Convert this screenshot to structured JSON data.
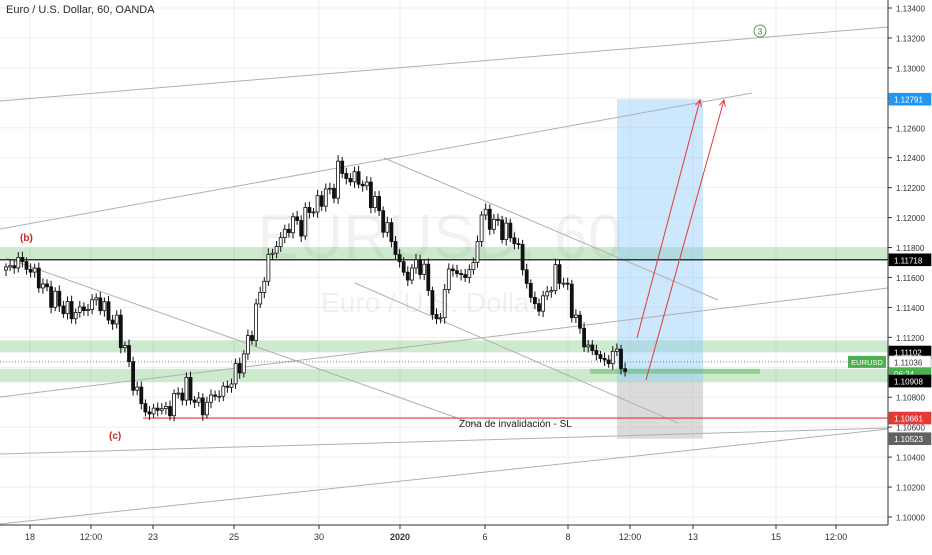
{
  "header": {
    "title": "Euro / U.S. Dollar, 60, OANDA"
  },
  "watermark": {
    "symbol": "EURUSD, 60",
    "description": "Euro / U.S. Dollar"
  },
  "chart_data": {
    "type": "candlestick",
    "title": "Euro / U.S. Dollar, 60, OANDA",
    "ylim": [
      1.099,
      1.1345
    ],
    "y_ticks": [
      1.1,
      1.102,
      1.104,
      1.106,
      1.108,
      1.11,
      1.112,
      1.114,
      1.116,
      1.118,
      1.12,
      1.122,
      1.124,
      1.126,
      1.128,
      1.13,
      1.132,
      1.134
    ],
    "y_tick_labels": [
      "1.10000",
      "1.10200",
      "1.10400",
      "1.10600",
      "1.10800",
      "1.11000",
      "1.11200",
      "1.11400",
      "1.11600",
      "1.11800",
      "1.12000",
      "1.12200",
      "1.12400",
      "1.12600",
      "1.12800",
      "1.13000",
      "1.13200",
      "1.13400"
    ],
    "x_tick_labels": [
      "18",
      "12:00",
      "23",
      "25",
      "30",
      "2020",
      "6",
      "8",
      "12:00",
      "13",
      "15",
      "12:00"
    ],
    "price_path": [
      [
        0,
        1.1164
      ],
      [
        3,
        1.1172
      ],
      [
        7,
        1.1162
      ],
      [
        10,
        1.115
      ],
      [
        13,
        1.1142
      ],
      [
        16,
        1.1136
      ],
      [
        20,
        1.114
      ],
      [
        22,
        1.1146
      ],
      [
        24,
        1.1138
      ],
      [
        27,
        1.1128
      ],
      [
        29,
        1.1112
      ],
      [
        31,
        1.109
      ],
      [
        33,
        1.1076
      ],
      [
        35,
        1.1068
      ],
      [
        37,
        1.1074
      ],
      [
        39,
        1.107
      ],
      [
        42,
        1.1082
      ],
      [
        44,
        1.1086
      ],
      [
        46,
        1.1078
      ],
      [
        48,
        1.1072
      ],
      [
        50,
        1.108
      ],
      [
        53,
        1.1084
      ],
      [
        56,
        1.1096
      ],
      [
        58,
        1.1108
      ],
      [
        60,
        1.1125
      ],
      [
        62,
        1.115
      ],
      [
        64,
        1.1172
      ],
      [
        66,
        1.1182
      ],
      [
        68,
        1.119
      ],
      [
        70,
        1.1198
      ],
      [
        72,
        1.1194
      ],
      [
        74,
        1.1206
      ],
      [
        76,
        1.1208
      ],
      [
        78,
        1.1218
      ],
      [
        80,
        1.1216
      ],
      [
        81,
        1.1237
      ],
      [
        82,
        1.1228
      ],
      [
        84,
        1.1226
      ],
      [
        86,
        1.1226
      ],
      [
        88,
        1.1218
      ],
      [
        90,
        1.121
      ],
      [
        92,
        1.1196
      ],
      [
        94,
        1.1186
      ],
      [
        96,
        1.1168
      ],
      [
        98,
        1.116
      ],
      [
        100,
        1.117
      ],
      [
        102,
        1.1164
      ],
      [
        104,
        1.114
      ],
      [
        105,
        1.1125
      ],
      [
        107,
        1.1152
      ],
      [
        109,
        1.117
      ],
      [
        110,
        1.116
      ],
      [
        112,
        1.1162
      ],
      [
        114,
        1.1168
      ],
      [
        115,
        1.1186
      ],
      [
        116,
        1.1203
      ],
      [
        118,
        1.1198
      ],
      [
        120,
        1.1195
      ],
      [
        122,
        1.119
      ],
      [
        124,
        1.1186
      ],
      [
        126,
        1.1168
      ],
      [
        128,
        1.1145
      ],
      [
        130,
        1.114
      ],
      [
        132,
        1.115
      ],
      [
        134,
        1.1162
      ],
      [
        136,
        1.1158
      ],
      [
        138,
        1.114
      ],
      [
        140,
        1.1124
      ],
      [
        142,
        1.1112
      ],
      [
        144,
        1.111
      ],
      [
        146,
        1.1102
      ],
      [
        148,
        1.111
      ],
      [
        150,
        1.1106
      ],
      [
        151,
        1.1092
      ]
    ],
    "horizontal_lines": [
      {
        "price": 1.11718,
        "color": "#000000"
      },
      {
        "price": 1.10661,
        "color": "#e53935"
      },
      {
        "price": 1.11036,
        "color": "#555555",
        "style": "dotted"
      }
    ],
    "zones": [
      {
        "from": 1.1172,
        "to": 1.118,
        "color": "#4caf50"
      },
      {
        "from": 1.111,
        "to": 1.1118,
        "color": "#4caf50"
      },
      {
        "from": 1.109,
        "to": 1.1099,
        "color": "#4caf50"
      }
    ],
    "position": {
      "entry": 1.10908,
      "target": 1.12791,
      "stop": 1.10523,
      "target_color": "#90caf9",
      "stop_color": "#bdbdbd"
    },
    "price_labels": [
      {
        "text": "1.12791",
        "price": 1.12791,
        "bg": "#2196f3",
        "fg": "#ffffff"
      },
      {
        "text": "1.11718",
        "price": 1.11718,
        "bg": "#000000",
        "fg": "#ffffff"
      },
      {
        "text": "1.11102",
        "price": 1.11102,
        "bg": "#000000",
        "fg": "#ffffff"
      },
      {
        "text": "1.11036",
        "price": 1.11036,
        "bg": "#ffffff",
        "fg": "#333333"
      },
      {
        "text": "06:24",
        "price": 1.10958,
        "bg": "#4caf50",
        "fg": "#ffffff"
      },
      {
        "text": "1.10908",
        "price": 1.10908,
        "bg": "#000000",
        "fg": "#ffffff"
      },
      {
        "text": "1.10661",
        "price": 1.10661,
        "bg": "#e53935",
        "fg": "#ffffff"
      },
      {
        "text": "1.10523",
        "price": 1.10523,
        "bg": "#616161",
        "fg": "#ffffff"
      }
    ],
    "symbol_badge": {
      "text": "EURUSD",
      "color": "#4caf50"
    },
    "annotations": [
      {
        "text": "(b)",
        "color": "#c62828"
      },
      {
        "text": "(c)",
        "color": "#c62828"
      },
      {
        "text": "Zona de invalidación - SL",
        "color": "#222222"
      },
      {
        "text": "3",
        "color": "#2e7d32"
      }
    ],
    "colors": {
      "candle": "#111111",
      "grid": "#eeeeee",
      "trendline": "#b0b0b0",
      "arrow": "#e53935"
    }
  }
}
